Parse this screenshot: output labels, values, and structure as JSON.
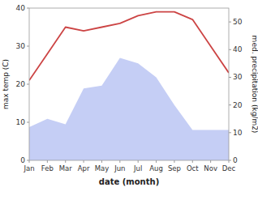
{
  "chart_data": {
    "type": "line",
    "xlabel": "date (month)",
    "ylabel": "max temp (C)",
    "y2label": "med. precipitation (kg/m2)",
    "categories": [
      "Jan",
      "Feb",
      "Mar",
      "Apr",
      "May",
      "Jun",
      "Jul",
      "Aug",
      "Sep",
      "Oct",
      "Nov",
      "Dec"
    ],
    "series": [
      {
        "type": "line",
        "color": "#cc4444",
        "values": [
          21,
          28,
          35,
          34,
          35,
          36,
          38,
          39,
          39,
          37,
          30,
          23
        ]
      },
      {
        "type": "area",
        "color": "#c5cef5",
        "axis": "y2",
        "values": [
          12,
          15,
          13,
          26,
          27,
          37,
          35,
          30,
          20,
          11,
          11,
          11
        ]
      }
    ],
    "ylim": [
      0,
      40
    ],
    "yticks": [
      0,
      10,
      20,
      30,
      40
    ],
    "y2lim": [
      0,
      55
    ],
    "y2ticks": [
      0,
      10,
      20,
      30,
      40,
      50
    ],
    "grid": false
  }
}
